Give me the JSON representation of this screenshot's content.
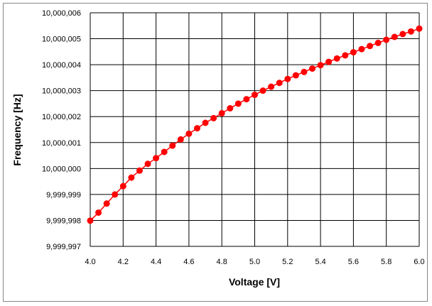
{
  "chart_data": {
    "type": "line",
    "title": "",
    "xlabel": "Voltage [V]",
    "ylabel": "Frequency [Hz]",
    "xlim": [
      4.0,
      6.0
    ],
    "ylim": [
      9999997,
      10000006
    ],
    "x_ticks": [
      "4.0",
      "4.2",
      "4.4",
      "4.6",
      "4.8",
      "5.0",
      "5.2",
      "5.4",
      "5.6",
      "5.8",
      "6.0"
    ],
    "y_ticks": [
      "9,999,997",
      "9,999,998",
      "9,999,999",
      "10,000,000",
      "10,000,001",
      "10,000,002",
      "10,000,003",
      "10,000,004",
      "10,000,005",
      "10,000,006"
    ],
    "grid": true,
    "legend": "none",
    "series": [
      {
        "color": "#ff0000",
        "marker": "circle",
        "x": [
          4.0,
          4.05,
          4.1,
          4.15,
          4.2,
          4.25,
          4.3,
          4.35,
          4.4,
          4.45,
          4.5,
          4.55,
          4.6,
          4.65,
          4.7,
          4.75,
          4.8,
          4.85,
          4.9,
          4.95,
          5.0,
          5.05,
          5.1,
          5.15,
          5.2,
          5.25,
          5.3,
          5.35,
          5.4,
          5.45,
          5.5,
          5.55,
          5.6,
          5.65,
          5.7,
          5.75,
          5.8,
          5.85,
          5.9,
          5.95,
          6.0
        ],
        "y": [
          9999997.99,
          9999998.3,
          9999998.65,
          9999999.0,
          9999999.32,
          9999999.65,
          9999999.92,
          10000000.18,
          10000000.4,
          10000000.64,
          10000000.88,
          10000001.12,
          10000001.34,
          10000001.55,
          10000001.76,
          10000001.94,
          10000002.13,
          10000002.32,
          10000002.5,
          10000002.67,
          10000002.84,
          10000003.0,
          10000003.15,
          10000003.3,
          10000003.45,
          10000003.59,
          10000003.72,
          10000003.85,
          10000003.98,
          10000004.11,
          10000004.24,
          10000004.36,
          10000004.48,
          10000004.6,
          10000004.72,
          10000004.84,
          10000004.96,
          10000005.07,
          10000005.18,
          10000005.28,
          10000005.39
        ]
      }
    ]
  }
}
